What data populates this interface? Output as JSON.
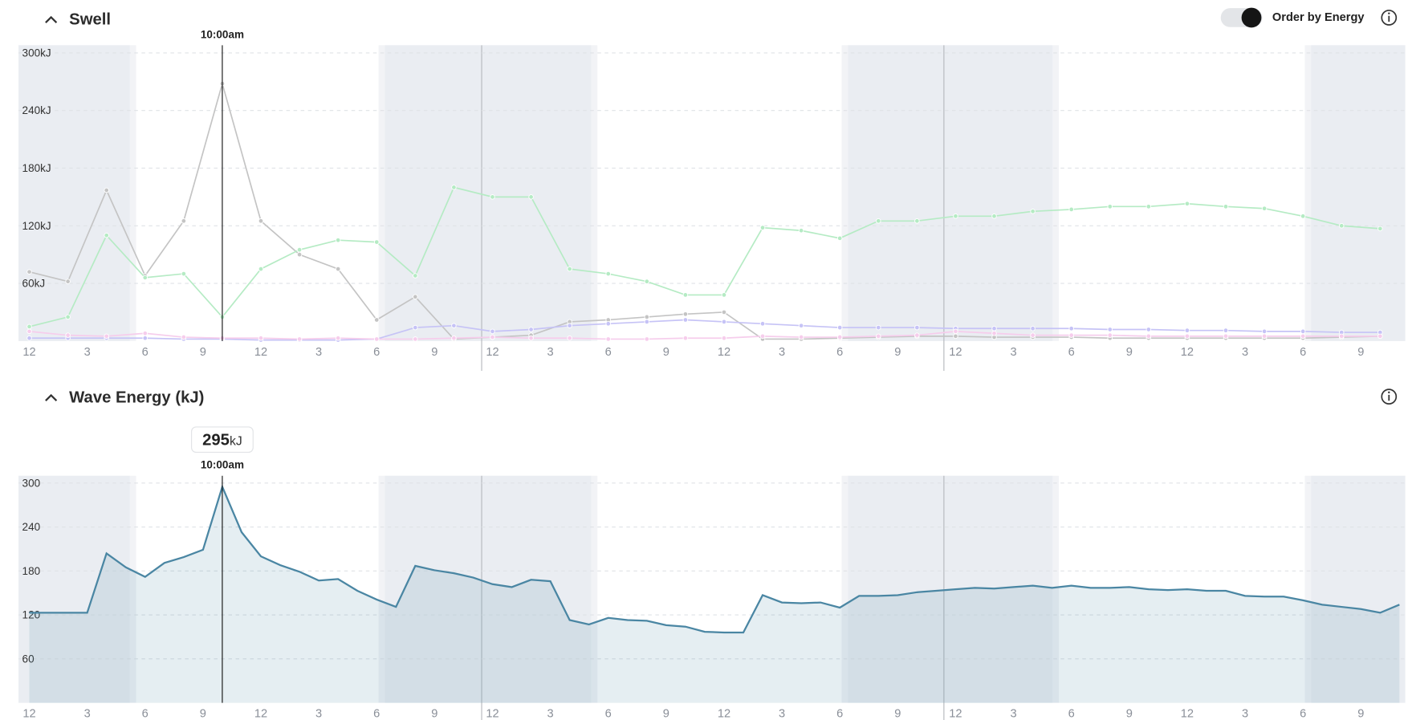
{
  "controls": {
    "toggle_label": "Order by Energy"
  },
  "chart_data": [
    {
      "type": "line",
      "title": "Swell",
      "x": [
        0,
        2,
        4,
        6,
        8,
        10,
        12,
        14,
        16,
        18,
        20,
        22,
        24,
        26,
        28,
        30,
        32,
        34,
        36,
        38,
        40,
        42,
        44,
        46,
        48,
        50,
        52,
        54,
        56,
        58,
        60,
        62,
        64,
        66,
        68,
        70
      ],
      "series": [
        {
          "color": "#c4c4c4",
          "values": [
            72,
            62,
            157,
            68,
            125,
            268,
            125,
            90,
            75,
            22,
            46,
            2,
            4,
            6,
            20,
            22,
            25,
            28,
            30,
            2,
            2,
            3,
            4,
            5,
            5,
            4,
            4,
            4,
            3,
            3,
            3,
            3,
            3,
            3,
            4,
            5
          ]
        },
        {
          "color": "#b5ebc4",
          "values": [
            15,
            25,
            110,
            66,
            70,
            25,
            75,
            95,
            105,
            103,
            68,
            160,
            150,
            150,
            75,
            70,
            62,
            48,
            48,
            118,
            115,
            107,
            125,
            125,
            130,
            130,
            135,
            137,
            140,
            140,
            143,
            140,
            138,
            130,
            120,
            117
          ]
        },
        {
          "color": "#c6c3f6",
          "values": [
            3,
            3,
            3,
            3,
            2,
            2,
            1,
            1,
            1,
            2,
            14,
            16,
            10,
            12,
            16,
            18,
            20,
            22,
            20,
            18,
            16,
            14,
            14,
            14,
            13,
            13,
            13,
            13,
            12,
            12,
            11,
            11,
            10,
            10,
            9,
            9
          ]
        },
        {
          "color": "#f6cdec",
          "values": [
            10,
            6,
            5,
            8,
            4,
            3,
            3,
            2,
            3,
            2,
            2,
            3,
            4,
            3,
            3,
            2,
            2,
            3,
            3,
            5,
            4,
            4,
            5,
            6,
            10,
            8,
            6,
            6,
            6,
            5,
            5,
            5,
            5,
            5,
            5,
            5
          ]
        }
      ],
      "xlim": [
        -0.56,
        71.3
      ],
      "xticks": [
        {
          "value": 0,
          "label": "12"
        },
        {
          "value": 3,
          "label": "3"
        },
        {
          "value": 6,
          "label": "6"
        },
        {
          "value": 9,
          "label": "9"
        },
        {
          "value": 12,
          "label": "12"
        },
        {
          "value": 15,
          "label": "3"
        },
        {
          "value": 18,
          "label": "6"
        },
        {
          "value": 21,
          "label": "9"
        },
        {
          "value": 24,
          "label": "12"
        },
        {
          "value": 27,
          "label": "3"
        },
        {
          "value": 30,
          "label": "6"
        },
        {
          "value": 33,
          "label": "9"
        },
        {
          "value": 36,
          "label": "12"
        },
        {
          "value": 39,
          "label": "3"
        },
        {
          "value": 42,
          "label": "6"
        },
        {
          "value": 45,
          "label": "9"
        },
        {
          "value": 48,
          "label": "12"
        },
        {
          "value": 51,
          "label": "3"
        },
        {
          "value": 54,
          "label": "6"
        },
        {
          "value": 57,
          "label": "9"
        },
        {
          "value": 60,
          "label": "12"
        },
        {
          "value": 63,
          "label": "3"
        },
        {
          "value": 66,
          "label": "6"
        },
        {
          "value": 69,
          "label": "9"
        }
      ],
      "ylim": [
        0,
        308
      ],
      "yticks": [
        {
          "value": 60,
          "label": "60kJ"
        },
        {
          "value": 120,
          "label": "120kJ"
        },
        {
          "value": 180,
          "label": "180kJ"
        },
        {
          "value": 240,
          "label": "240kJ"
        },
        {
          "value": 300,
          "label": "300kJ"
        }
      ],
      "grid": true,
      "cursor": {
        "x": 10,
        "label": "10:00am"
      }
    },
    {
      "type": "area",
      "title": "Wave Energy (kJ)",
      "x": [
        0,
        1,
        2,
        3,
        4,
        5,
        6,
        7,
        8,
        9,
        10,
        11,
        12,
        13,
        14,
        15,
        16,
        17,
        18,
        19,
        20,
        21,
        22,
        23,
        24,
        25,
        26,
        27,
        28,
        29,
        30,
        31,
        32,
        33,
        34,
        35,
        36,
        37,
        38,
        39,
        40,
        41,
        42,
        43,
        44,
        45,
        46,
        47,
        48,
        49,
        50,
        51,
        52,
        53,
        54,
        55,
        56,
        57,
        58,
        59,
        60,
        61,
        62,
        63,
        64,
        65,
        66,
        67,
        68,
        69,
        70,
        71
      ],
      "values": [
        123,
        123,
        123,
        123,
        204,
        185,
        172,
        191,
        199,
        209,
        295,
        233,
        200,
        188,
        179,
        167,
        169,
        153,
        141,
        131,
        187,
        181,
        177,
        171,
        162,
        158,
        168,
        166,
        113,
        107,
        116,
        113,
        112,
        106,
        104,
        97,
        96,
        96,
        147,
        137,
        136,
        137,
        130,
        146,
        146,
        147,
        151,
        153,
        155,
        157,
        156,
        158,
        160,
        157,
        160,
        157,
        157,
        158,
        155,
        154,
        155,
        153,
        153,
        146,
        145,
        145,
        140,
        134,
        131,
        128,
        123,
        134
      ],
      "color": "#4a86a3",
      "xlim": [
        -0.56,
        71.3
      ],
      "xticks": [
        {
          "value": 0,
          "label": "12"
        },
        {
          "value": 3,
          "label": "3"
        },
        {
          "value": 6,
          "label": "6"
        },
        {
          "value": 9,
          "label": "9"
        },
        {
          "value": 12,
          "label": "12"
        },
        {
          "value": 15,
          "label": "3"
        },
        {
          "value": 18,
          "label": "6"
        },
        {
          "value": 21,
          "label": "9"
        },
        {
          "value": 24,
          "label": "12"
        },
        {
          "value": 27,
          "label": "3"
        },
        {
          "value": 30,
          "label": "6"
        },
        {
          "value": 33,
          "label": "9"
        },
        {
          "value": 36,
          "label": "12"
        },
        {
          "value": 39,
          "label": "3"
        },
        {
          "value": 42,
          "label": "6"
        },
        {
          "value": 45,
          "label": "9"
        },
        {
          "value": 48,
          "label": "12"
        },
        {
          "value": 51,
          "label": "3"
        },
        {
          "value": 54,
          "label": "6"
        },
        {
          "value": 57,
          "label": "9"
        },
        {
          "value": 60,
          "label": "12"
        },
        {
          "value": 63,
          "label": "3"
        },
        {
          "value": 66,
          "label": "6"
        },
        {
          "value": 69,
          "label": "9"
        }
      ],
      "ylim": [
        0,
        310
      ],
      "yticks": [
        60,
        120,
        180,
        240,
        300
      ],
      "grid": true,
      "cursor": {
        "x": 10,
        "label": "10:00am"
      },
      "tooltip_unit": "kJ"
    }
  ]
}
